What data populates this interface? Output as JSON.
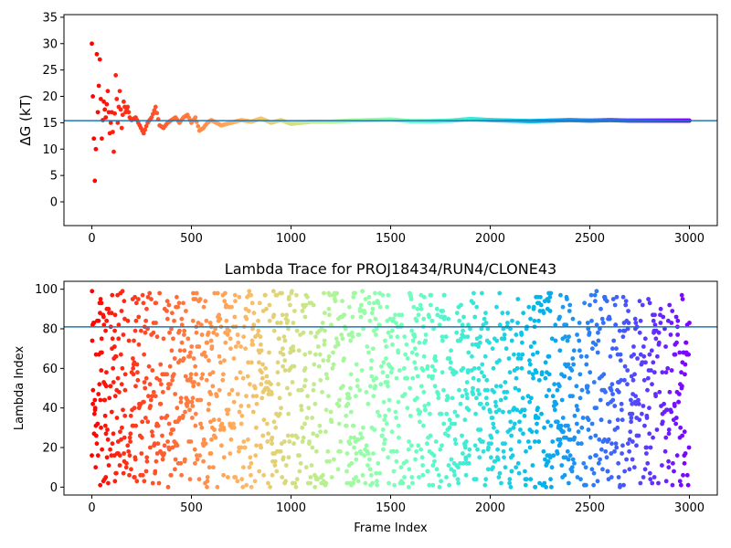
{
  "chart_data": [
    {
      "type": "scatter",
      "title": "",
      "xlabel": "",
      "ylabel": "ΔG (kT)",
      "xlim": [
        -140,
        3140
      ],
      "ylim": [
        -4.5,
        35.5
      ],
      "xticks": [
        0,
        500,
        1000,
        1500,
        2000,
        2500,
        3000
      ],
      "yticks": [
        0,
        5,
        10,
        15,
        20,
        25,
        30,
        35
      ],
      "grid": false,
      "colormap": "rainbow",
      "hline": {
        "y": 15.4,
        "color": "#1f77b4"
      },
      "series_description": "Running free-energy estimate per frame, converging to the reference line",
      "x": [
        0,
        5,
        10,
        15,
        20,
        25,
        30,
        40,
        50,
        60,
        70,
        80,
        90,
        100,
        110,
        120,
        130,
        140,
        150,
        160,
        170,
        180,
        190,
        200,
        220,
        240,
        260,
        280,
        300,
        320,
        340,
        360,
        380,
        400,
        420,
        440,
        460,
        480,
        500,
        520,
        540,
        560,
        580,
        600,
        650,
        700,
        750,
        800,
        850,
        900,
        950,
        1000,
        1100,
        1200,
        1300,
        1400,
        1500,
        1600,
        1700,
        1800,
        1900,
        2000,
        2100,
        2200,
        2300,
        2400,
        2500,
        2600,
        2700,
        2800,
        2900,
        3000
      ],
      "y": [
        30,
        20,
        12,
        4,
        10,
        28,
        17,
        27,
        12,
        19,
        16,
        21,
        13,
        17,
        9.5,
        24,
        15,
        21,
        14,
        19,
        17,
        18,
        16,
        15.5,
        16,
        14.5,
        13,
        15,
        16,
        18,
        14.5,
        14,
        15,
        15.5,
        16,
        15,
        16,
        16.5,
        15,
        16,
        13.5,
        14,
        15,
        15.5,
        14.5,
        15,
        15.5,
        15.2,
        15.8,
        15,
        15.5,
        14.8,
        15.2,
        15.2,
        15.4,
        15.5,
        15.6,
        15.3,
        15.3,
        15.4,
        15.7,
        15.5,
        15.4,
        15.3,
        15.4,
        15.5,
        15.4,
        15.5,
        15.4,
        15.4,
        15.4,
        15.4
      ]
    },
    {
      "type": "scatter",
      "title": "Lambda Trace for PROJ18434/RUN4/CLONE43",
      "xlabel": "Frame Index",
      "ylabel": "Lambda Index",
      "xlim": [
        -140,
        3140
      ],
      "ylim": [
        -4,
        104
      ],
      "xticks": [
        0,
        500,
        1000,
        1500,
        2000,
        2500,
        3000
      ],
      "yticks": [
        0,
        20,
        40,
        60,
        80,
        100
      ],
      "grid": false,
      "colormap": "rainbow",
      "hline": {
        "y": 81,
        "color": "#1f77b4"
      },
      "frames": [
        0,
        3000
      ],
      "lambda_range": [
        0,
        99
      ],
      "series_description": "Lambda index sampled at every frame (approx. 3000 points), scattered uniformly over 0–99"
    }
  ]
}
